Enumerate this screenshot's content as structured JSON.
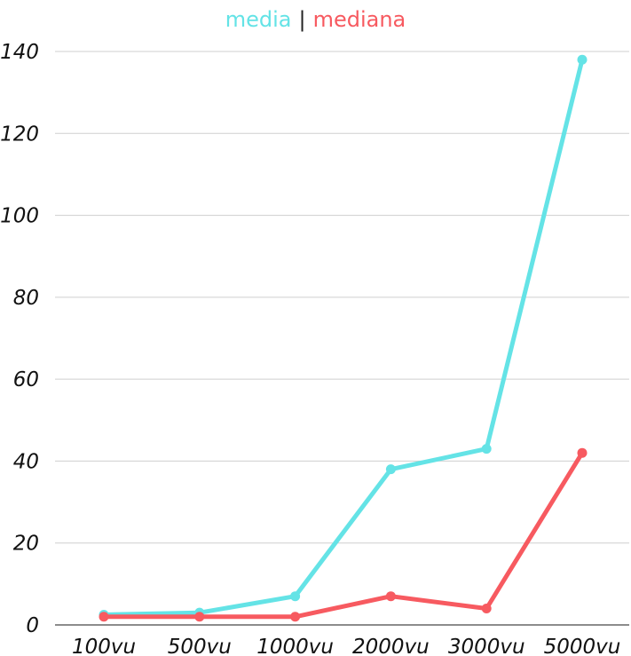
{
  "legend": {
    "separator": "|"
  },
  "colors": {
    "media": "#64E3E6",
    "mediana": "#F75A60",
    "grid": "#cfcfcf",
    "axis": "#666666"
  },
  "chart_data": {
    "type": "line",
    "title": "",
    "xlabel": "",
    "ylabel": "",
    "categories": [
      "100vu",
      "500vu",
      "1000vu",
      "2000vu",
      "3000vu",
      "5000vu"
    ],
    "series": [
      {
        "name": "media",
        "values": [
          2.5,
          3,
          7,
          38,
          43,
          138
        ]
      },
      {
        "name": "mediana",
        "values": [
          2,
          2,
          2,
          7,
          4,
          42
        ]
      }
    ],
    "ylim": [
      0,
      140
    ],
    "yticks": [
      "0",
      "20",
      "40",
      "60",
      "80",
      "100",
      "120",
      "140"
    ],
    "grid": true,
    "legend_position": "top-center"
  }
}
